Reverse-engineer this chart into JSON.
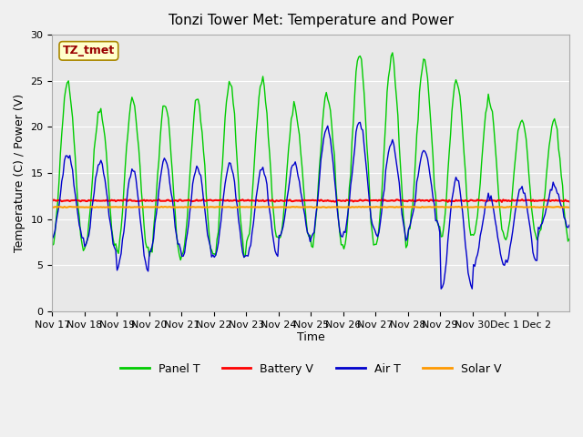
{
  "title": "Tonzi Tower Met: Temperature and Power",
  "ylabel": "Temperature (C) / Power (V)",
  "xlabel": "Time",
  "ylim": [
    0,
    30
  ],
  "n_days": 16,
  "x_tick_labels": [
    "Nov 17",
    "Nov 18",
    "Nov 19",
    "Nov 20",
    "Nov 21",
    "Nov 22",
    "Nov 23",
    "Nov 24",
    "Nov 25",
    "Nov 26",
    "Nov 27",
    "Nov 28",
    "Nov 29",
    "Nov 30",
    "Dec 1",
    "Dec 2"
  ],
  "battery_v": 12.0,
  "solar_v": 11.3,
  "panel_peaks": [
    25,
    22,
    23,
    22.5,
    23,
    25,
    25,
    22,
    23.5,
    28,
    27.5,
    27.3,
    25,
    23,
    21,
    20.5
  ],
  "panel_mins": [
    7,
    7,
    6.5,
    6,
    6,
    6,
    7.5,
    8,
    7,
    7,
    7.5,
    9,
    8,
    8,
    8,
    8
  ],
  "air_peaks": [
    17,
    16,
    15.5,
    16.5,
    15.5,
    16,
    15.5,
    16,
    20,
    20.5,
    18.5,
    17.5,
    14.5,
    12.5,
    13.5,
    13.5
  ],
  "air_mins": [
    8,
    7,
    4.5,
    6.5,
    6,
    6,
    6,
    8,
    8,
    8.5,
    8,
    9,
    2.5,
    5,
    5.5,
    9
  ],
  "panel_color": "#00CC00",
  "battery_color": "#FF0000",
  "air_color": "#0000CC",
  "solar_color": "#FF9900",
  "bg_color": "#E8E8E8",
  "fig_bg_color": "#F0F0F0",
  "annotation_text": "TZ_tmet",
  "annotation_color": "#990000",
  "annotation_bg": "#FFFFCC",
  "annotation_edge": "#AA8800",
  "legend_labels": [
    "Panel T",
    "Battery V",
    "Air T",
    "Solar V"
  ],
  "yticks": [
    0,
    5,
    10,
    15,
    20,
    25,
    30
  ],
  "samples_per_day": 24
}
